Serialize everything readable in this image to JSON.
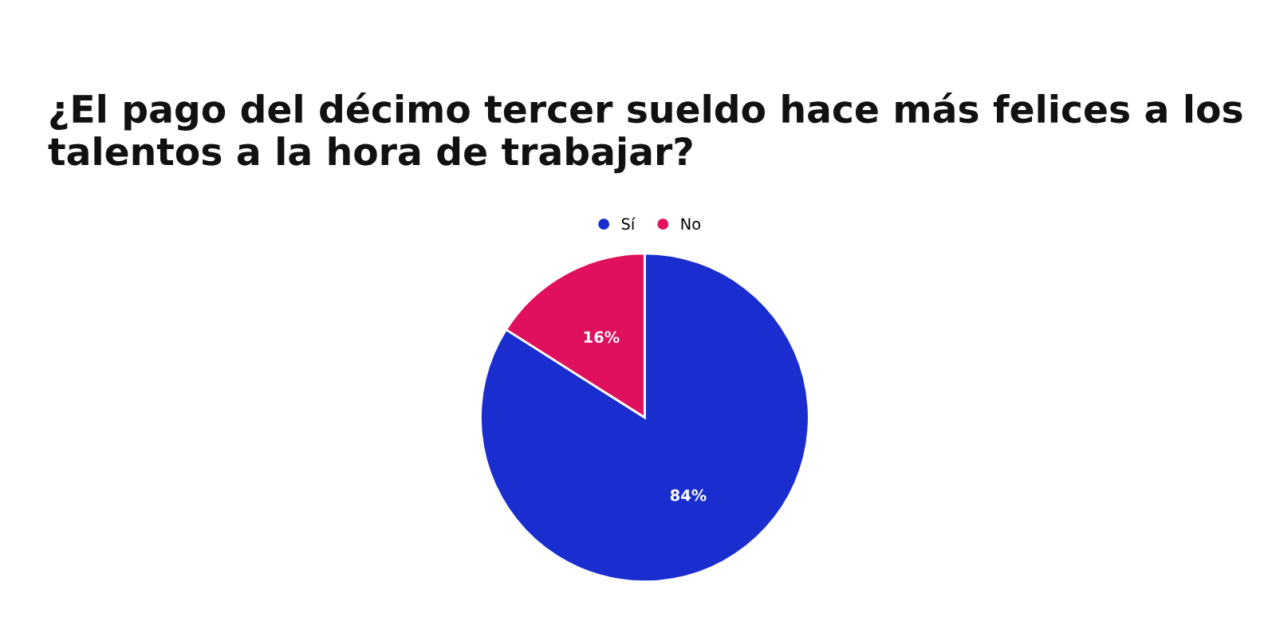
{
  "chart_data": {
    "type": "pie",
    "title": "¿El pago del décimo tercer sueldo hace más felices a los talentos a la hora de trabajar?",
    "categories": [
      "Sí",
      "No"
    ],
    "values": [
      84,
      16
    ],
    "colors": [
      "#1a2ecf",
      "#e0105e"
    ],
    "value_labels": [
      "84%",
      "16%"
    ],
    "legend": "top"
  }
}
